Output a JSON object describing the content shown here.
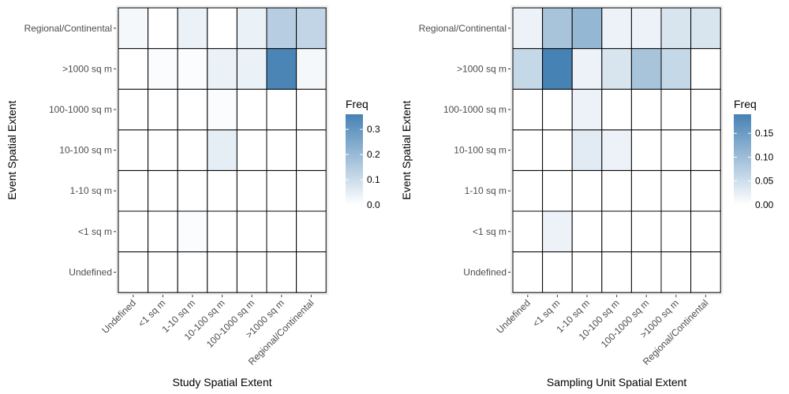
{
  "chart_data": [
    {
      "type": "heatmap",
      "xlabel": "Study Spatial Extent",
      "ylabel": "Event Spatial Extent",
      "x_categories": [
        "Undefined",
        "<1 sq m",
        "1-10 sq m",
        "10-100 sq m",
        "100-1000 sq m",
        ">1000 sq m",
        "Regional/Continental"
      ],
      "y_categories": [
        "Undefined",
        "<1 sq m",
        "1-10 sq m",
        "10-100 sq m",
        "100-1000 sq m",
        ">1000 sq m",
        "Regional/Continental"
      ],
      "values": [
        [
          0.0,
          0.0,
          0.0,
          0.0,
          0.0,
          0.0,
          0.0
        ],
        [
          0.0,
          0.0,
          0.01,
          0.0,
          0.0,
          0.0,
          0.0
        ],
        [
          0.0,
          0.0,
          0.0,
          0.0,
          0.0,
          0.0,
          0.0
        ],
        [
          0.0,
          0.0,
          0.0,
          0.05,
          0.0,
          0.0,
          0.0
        ],
        [
          0.0,
          0.0,
          0.0,
          0.01,
          0.0,
          0.0,
          0.0
        ],
        [
          0.0,
          0.01,
          0.01,
          0.04,
          0.04,
          0.35,
          0.02
        ],
        [
          0.02,
          0.0,
          0.04,
          0.0,
          0.04,
          0.14,
          0.12
        ]
      ],
      "color_range": [
        0,
        0.36
      ],
      "low_color": "#ffffff",
      "high_color": "#4682b4",
      "legend": {
        "title": "Freq",
        "ticks": [
          0.0,
          0.1,
          0.2,
          0.3
        ],
        "tick_labels": [
          "0.0",
          "0.1",
          "0.2",
          "0.3"
        ]
      },
      "grid": false
    },
    {
      "type": "heatmap",
      "xlabel": "Sampling Unit Spatial Extent",
      "ylabel": "Event Spatial Extent",
      "x_categories": [
        "Undefined",
        "<1 sq m",
        "1-10 sq m",
        "10-100 sq m",
        "100-1000 sq m",
        ">1000 sq m",
        "Regional/Continental"
      ],
      "y_categories": [
        "Undefined",
        "<1 sq m",
        "1-10 sq m",
        "10-100 sq m",
        "100-1000 sq m",
        ">1000 sq m",
        "Regional/Continental"
      ],
      "values": [
        [
          0.0,
          0.0,
          0.0,
          0.0,
          0.0,
          0.0,
          0.0
        ],
        [
          0.0,
          0.02,
          0.0,
          0.0,
          0.0,
          0.0,
          0.0
        ],
        [
          0.0,
          0.0,
          0.0,
          0.0,
          0.0,
          0.0,
          0.0
        ],
        [
          0.0,
          0.0,
          0.03,
          0.02,
          0.0,
          0.0,
          0.0
        ],
        [
          0.0,
          0.0,
          0.02,
          0.0,
          0.0,
          0.0,
          0.0
        ],
        [
          0.06,
          0.19,
          0.02,
          0.04,
          0.09,
          0.06,
          0.0
        ],
        [
          0.02,
          0.09,
          0.11,
          0.02,
          0.02,
          0.04,
          0.04
        ]
      ],
      "color_range": [
        0,
        0.19
      ],
      "low_color": "#ffffff",
      "high_color": "#4682b4",
      "legend": {
        "title": "Freq",
        "ticks": [
          0.0,
          0.05,
          0.1,
          0.15
        ],
        "tick_labels": [
          "0.00",
          "0.05",
          "0.10",
          "0.15"
        ]
      },
      "grid": false
    }
  ]
}
